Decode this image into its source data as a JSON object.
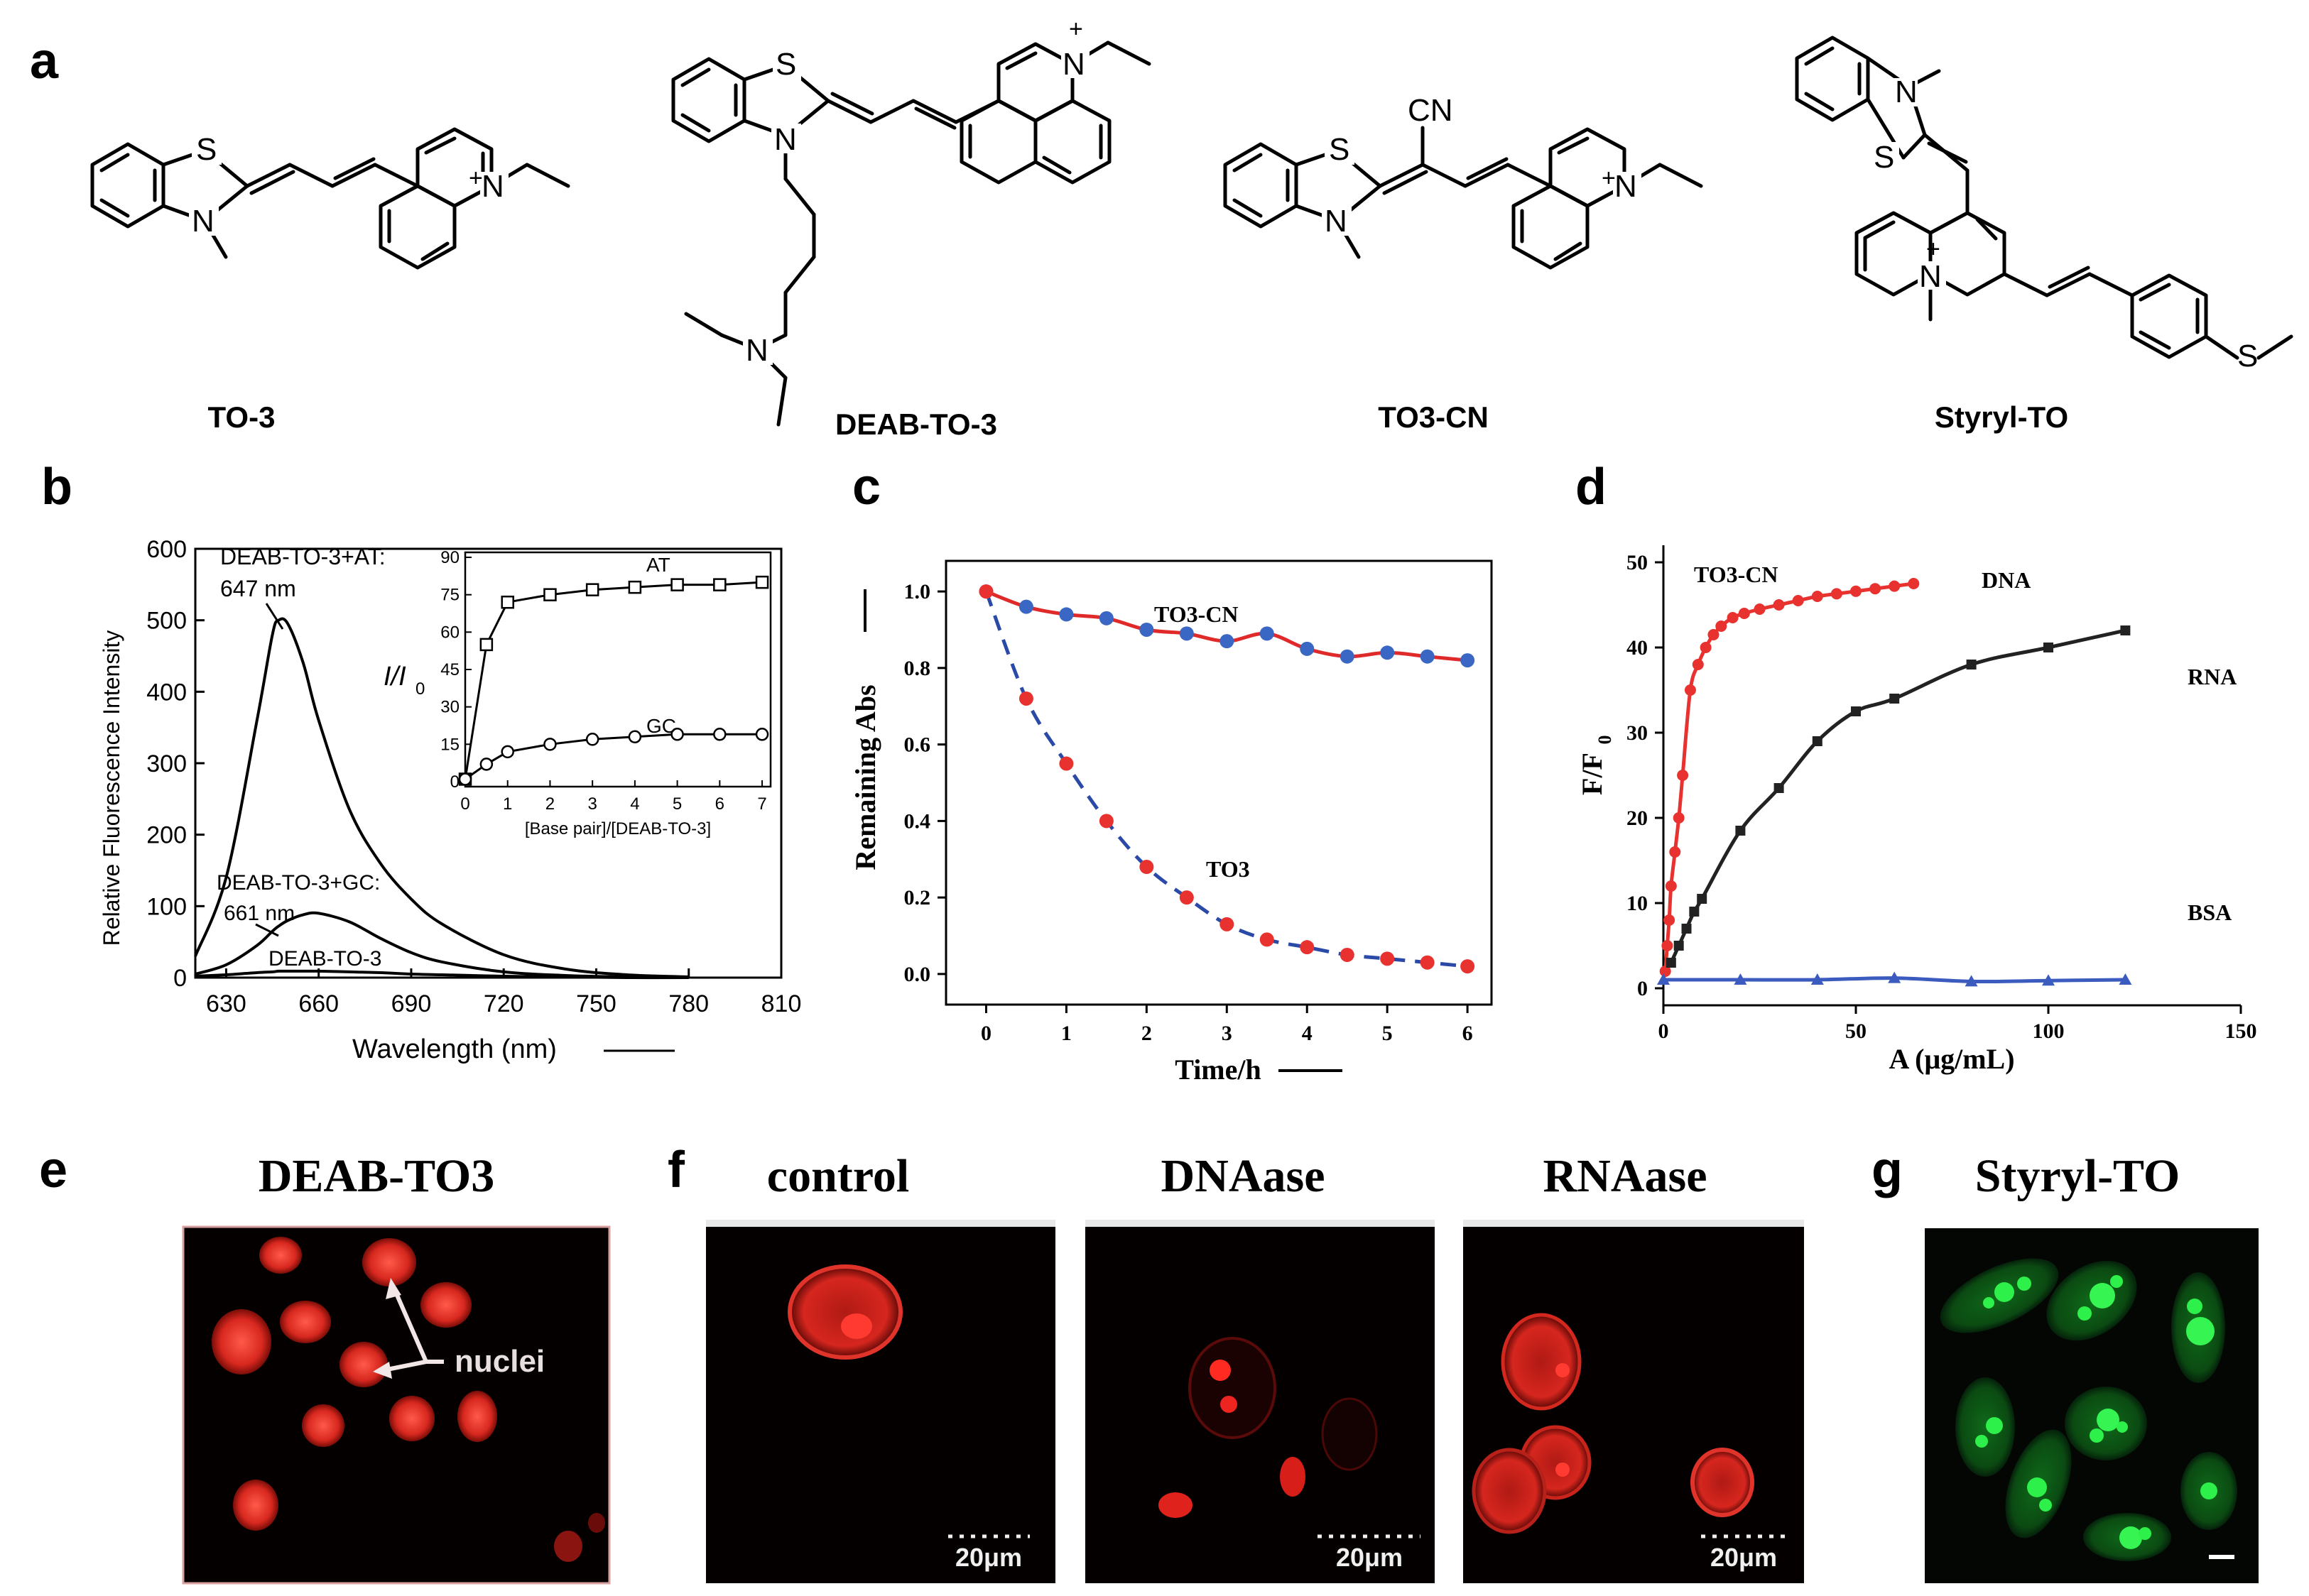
{
  "panel_letters": {
    "a": "a",
    "b": "b",
    "c": "c",
    "d": "d",
    "e": "e",
    "f": "f",
    "g": "g"
  },
  "compounds": [
    "TO-3",
    "DEAB-TO-3",
    "TO3-CN",
    "Styryl-TO"
  ],
  "atoms": {
    "S": "S",
    "N": "N",
    "plus": "+",
    "CN": "CN"
  },
  "chart_data": [
    {
      "type": "line",
      "panel": "b",
      "xlabel": "Wavelength (nm)",
      "ylabel": "Relative Fluorescence Intensity",
      "xlim": [
        620,
        810
      ],
      "ylim": [
        0,
        600
      ],
      "x_ticks": [
        "630",
        "660",
        "690",
        "720",
        "750",
        "780",
        "810"
      ],
      "y_ticks": [
        "0",
        "100",
        "200",
        "300",
        "400",
        "500",
        "600"
      ],
      "x": [
        620,
        630,
        640,
        645,
        647,
        650,
        655,
        660,
        670,
        680,
        690,
        700,
        720,
        740,
        760,
        780
      ],
      "series": [
        {
          "name": "DEAB-TO-3+AT:",
          "values": [
            30,
            140,
            360,
            480,
            500,
            495,
            440,
            360,
            235,
            160,
            110,
            75,
            32,
            12,
            4,
            1
          ]
        },
        {
          "name": "DEAB-TO-3+GC:",
          "values": [
            5,
            18,
            45,
            65,
            72,
            80,
            88,
            90,
            78,
            55,
            35,
            22,
            8,
            3,
            1,
            0
          ]
        },
        {
          "name": "DEAB-TO-3",
          "values": [
            2,
            4,
            7,
            8,
            9,
            9,
            9,
            9,
            8,
            7,
            5,
            4,
            2,
            1,
            0,
            0
          ]
        }
      ],
      "annotations": [
        "DEAB-TO-3+AT:",
        "647  nm",
        "DEAB-TO-3+GC:",
        "661  nm",
        "DEAB-TO-3"
      ],
      "inset": {
        "type": "line",
        "xlabel": "[Base pair]/[DEAB-TO-3]",
        "ylabel_main": "I/I",
        "ylabel_sub": "0",
        "xlim": [
          0,
          7
        ],
        "ylim": [
          0,
          90
        ],
        "x_ticks": [
          "0",
          "1",
          "2",
          "3",
          "4",
          "5",
          "6",
          "7"
        ],
        "y_ticks": [
          "0",
          "15",
          "30",
          "45",
          "60",
          "75",
          "90"
        ],
        "x": [
          0,
          0.5,
          1,
          2,
          3,
          4,
          5,
          6,
          7
        ],
        "series": [
          {
            "name": "AT",
            "marker": "square",
            "values": [
              1,
              55,
              72,
              75,
              77,
              78,
              79,
              79,
              80
            ]
          },
          {
            "name": "GC",
            "marker": "circle",
            "values": [
              1,
              7,
              12,
              15,
              17,
              18,
              19,
              19,
              19
            ]
          }
        ]
      }
    },
    {
      "type": "line",
      "panel": "c",
      "xlabel": "Time/h",
      "ylabel": "Remaining Abs",
      "xlim": [
        -0.5,
        6.3
      ],
      "ylim": [
        -0.08,
        1.08
      ],
      "x_ticks": [
        "0",
        "1",
        "2",
        "3",
        "4",
        "5",
        "6"
      ],
      "y_ticks": [
        "0.0",
        "0.2",
        "0.4",
        "0.6",
        "0.8",
        "1.0"
      ],
      "x": [
        0,
        0.5,
        1,
        1.5,
        2,
        2.5,
        3,
        3.5,
        4,
        4.5,
        5,
        5.5,
        6
      ],
      "series": [
        {
          "name": "TO3-CN",
          "values": [
            1.0,
            0.96,
            0.94,
            0.93,
            0.9,
            0.89,
            0.87,
            0.89,
            0.85,
            0.83,
            0.84,
            0.83,
            0.82
          ]
        },
        {
          "name": "TO3",
          "values": [
            1.0,
            0.72,
            0.55,
            0.4,
            0.28,
            0.2,
            0.13,
            0.09,
            0.07,
            0.05,
            0.04,
            0.03,
            0.02
          ]
        }
      ],
      "colors": {
        "line_red": "#e02a2a",
        "line_blue": "#2b4aa8",
        "point_blue": "#3a66c4",
        "point_red": "#e8322f"
      }
    },
    {
      "type": "line",
      "panel": "d",
      "xlabel": "A (μg/mL)",
      "ylabel_main": "F/F",
      "ylabel_sub": "0",
      "xlim": [
        0,
        150
      ],
      "ylim": [
        -2,
        52
      ],
      "x_ticks": [
        "0",
        "50",
        "100",
        "150"
      ],
      "y_ticks": [
        "0",
        "10",
        "20",
        "30",
        "40",
        "50"
      ],
      "title": "TO3-CN",
      "series": [
        {
          "name": "DNA",
          "color": "#e8322f",
          "x": [
            0.5,
            1,
            1.5,
            2,
            3,
            4,
            5,
            7,
            9,
            11,
            13,
            15,
            18,
            21,
            25,
            30,
            35,
            40,
            45,
            50,
            55,
            60,
            65
          ],
          "values": [
            2,
            5,
            8,
            12,
            16,
            20,
            25,
            35,
            38,
            40,
            41.5,
            42.5,
            43.5,
            44,
            44.5,
            45,
            45.5,
            46,
            46.3,
            46.6,
            46.9,
            47.2,
            47.5
          ]
        },
        {
          "name": "RNA",
          "color": "#222222",
          "x": [
            2,
            4,
            6,
            8,
            10,
            20,
            30,
            40,
            50,
            60,
            80,
            100,
            120
          ],
          "values": [
            3,
            5,
            7,
            9,
            10.5,
            18.5,
            23.5,
            29,
            32.5,
            34,
            38,
            40,
            42
          ]
        },
        {
          "name": "BSA",
          "color": "#3b5bbf",
          "x": [
            0,
            20,
            40,
            60,
            80,
            100,
            120
          ],
          "values": [
            1,
            1,
            1,
            1.2,
            0.8,
            0.9,
            1
          ]
        }
      ]
    }
  ],
  "micrographs": {
    "e": {
      "title": "DEAB-TO3",
      "label": "nuclei",
      "color": "#e3302e"
    },
    "f": [
      {
        "title": "control",
        "scale": "20μm"
      },
      {
        "title": "DNAase",
        "scale": "20μm"
      },
      {
        "title": "RNAase",
        "scale": "20μm"
      }
    ],
    "g": {
      "title": "Styryl-TO",
      "color": "#25d13a"
    }
  }
}
